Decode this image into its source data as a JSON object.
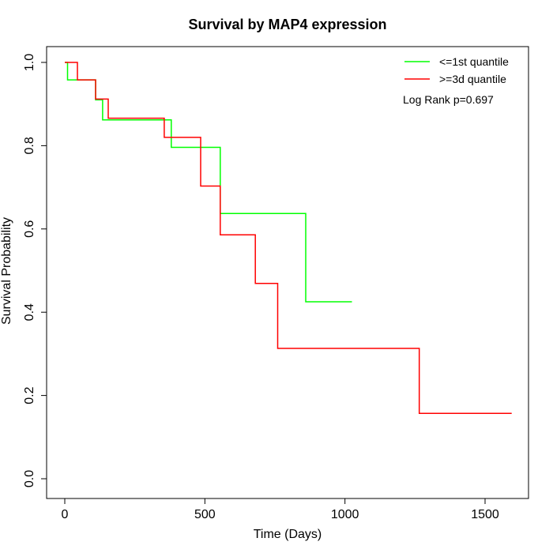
{
  "chart_data": {
    "type": "line",
    "step": true,
    "title": "Survival by MAP4 expression",
    "xlabel": "Time (Days)",
    "ylabel": "Survival Probability",
    "xlim": [
      0,
      1650
    ],
    "ylim": [
      0.0,
      1.0
    ],
    "x_ticks": [
      0,
      500,
      1000,
      1500
    ],
    "y_ticks": [
      0.0,
      0.2,
      0.4,
      0.6,
      0.8,
      1.0
    ],
    "x_tick_labels": [
      "0",
      "500",
      "1000",
      "1500"
    ],
    "y_tick_labels": [
      "0.0",
      "0.2",
      "0.4",
      "0.6",
      "0.8",
      "1.0"
    ],
    "grid": false,
    "legend_position": "top-right",
    "annotation": "Log Rank p=0.697",
    "series": [
      {
        "name": "<=1st quantile",
        "color": "#00ff00",
        "x": [
          0,
          10,
          10,
          110,
          110,
          135,
          135,
          380,
          380,
          555,
          555,
          860,
          860,
          1025
        ],
        "y": [
          1.0,
          1.0,
          0.958,
          0.958,
          0.91,
          0.91,
          0.862,
          0.862,
          0.796,
          0.796,
          0.637,
          0.637,
          0.425,
          0.425
        ]
      },
      {
        "name": ">=3d quantile",
        "color": "#ff0000",
        "x": [
          0,
          45,
          45,
          110,
          110,
          155,
          155,
          355,
          355,
          485,
          485,
          555,
          555,
          680,
          680,
          760,
          760,
          1265,
          1265,
          1595
        ],
        "y": [
          1.0,
          1.0,
          0.958,
          0.958,
          0.912,
          0.912,
          0.866,
          0.866,
          0.82,
          0.82,
          0.703,
          0.703,
          0.586,
          0.586,
          0.469,
          0.469,
          0.313,
          0.313,
          0.157,
          0.157
        ]
      }
    ]
  }
}
